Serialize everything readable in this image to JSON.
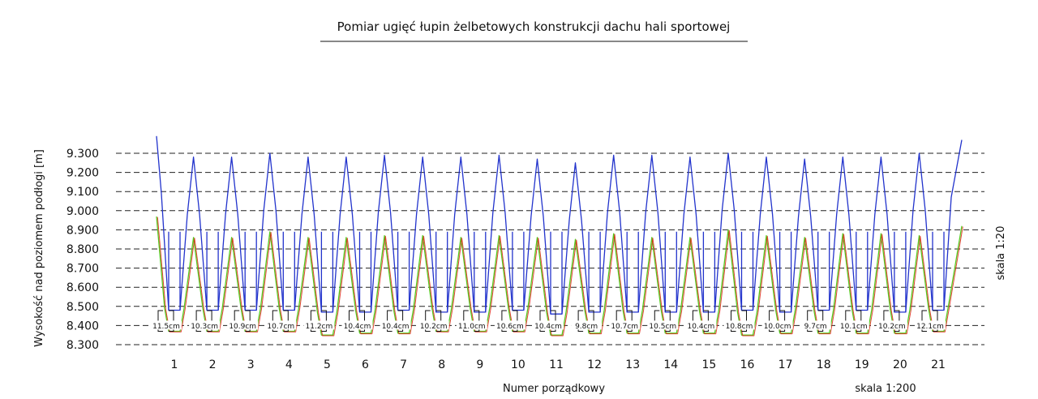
{
  "chart_data": {
    "type": "line",
    "title": "Pomiar ugięć łupin żelbetowych konstrukcji dachu hali sportowej",
    "xlabel": "Numer porządkowy",
    "ylabel": "Wysokość nad poziomem podłogi [m]",
    "scale_x_label": "skala 1:200",
    "scale_y_label": "skala 1:20",
    "ylim": [
      8.3,
      9.3
    ],
    "y_ticks": [
      "9.300",
      "9.200",
      "9.100",
      "9.000",
      "8.900",
      "8.800",
      "8.700",
      "8.600",
      "8.500",
      "8.400",
      "8.300"
    ],
    "grid": "horizontal dashed",
    "categories": [
      "1",
      "2",
      "3",
      "4",
      "5",
      "6",
      "7",
      "8",
      "9",
      "10",
      "11",
      "12",
      "13",
      "14",
      "15",
      "16",
      "17",
      "18",
      "19",
      "20",
      "21"
    ],
    "deflections": [
      "11.5cm",
      "10.3cm",
      "10.9cm",
      "10.7cm",
      "11.2cm",
      "10.4cm",
      "10.4cm",
      "10.2cm",
      "11.0cm",
      "10.6cm",
      "10.4cm",
      "9.8cm",
      "10.7cm",
      "10.5cm",
      "10.4cm",
      "10.8cm",
      "10.0cm",
      "9.7cm",
      "10.1cm",
      "10.2cm",
      "12.1cm"
    ],
    "series": [
      {
        "color": "#2233cc",
        "peaks": [
          9.39,
          9.28,
          9.28,
          9.3,
          9.28,
          9.28,
          9.29,
          9.28,
          9.28,
          9.29,
          9.27,
          9.25,
          9.29,
          9.29,
          9.28,
          9.3,
          9.28,
          9.27,
          9.28,
          9.28,
          9.3,
          9.37
        ],
        "valleys": [
          8.48,
          8.48,
          8.48,
          8.48,
          8.47,
          8.47,
          8.48,
          8.47,
          8.47,
          8.48,
          8.46,
          8.47,
          8.47,
          8.47,
          8.47,
          8.48,
          8.47,
          8.48,
          8.48,
          8.47,
          8.48
        ]
      },
      {
        "color": "#55cc22",
        "peaks": [
          8.97,
          8.86,
          8.86,
          8.89,
          8.86,
          8.86,
          8.87,
          8.87,
          8.86,
          8.87,
          8.86,
          8.85,
          8.88,
          8.86,
          8.86,
          8.9,
          8.87,
          8.86,
          8.88,
          8.88,
          8.87,
          8.92
        ],
        "valleys": [
          8.37,
          8.37,
          8.37,
          8.37,
          8.35,
          8.36,
          8.36,
          8.37,
          8.37,
          8.37,
          8.35,
          8.36,
          8.36,
          8.36,
          8.36,
          8.35,
          8.36,
          8.36,
          8.36,
          8.36,
          8.37
        ]
      },
      {
        "color": "#dd2211",
        "peaks": [
          8.97,
          8.86,
          8.86,
          8.89,
          8.86,
          8.86,
          8.87,
          8.87,
          8.86,
          8.87,
          8.86,
          8.85,
          8.88,
          8.86,
          8.86,
          8.9,
          8.87,
          8.86,
          8.88,
          8.88,
          8.87,
          8.92
        ],
        "valleys": [
          8.37,
          8.37,
          8.37,
          8.37,
          8.35,
          8.36,
          8.36,
          8.37,
          8.37,
          8.37,
          8.35,
          8.36,
          8.36,
          8.36,
          8.36,
          8.35,
          8.36,
          8.36,
          8.36,
          8.36,
          8.37
        ]
      }
    ]
  }
}
